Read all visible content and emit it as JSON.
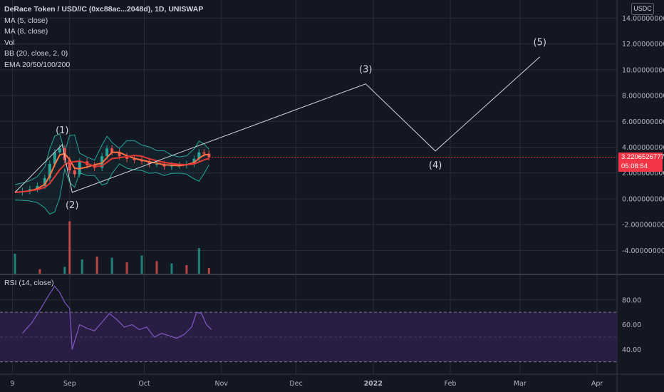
{
  "header": {
    "title": "DeRace Token / USD//C (0xc88ac...2048d), 1D, UNISWAP",
    "indicators": [
      "MA (5, close)",
      "MA (8, close)",
      "Vol",
      "BB (20, close, 2, 0)",
      "EMA 20/50/100/200"
    ]
  },
  "rsi_panel": {
    "label": "RSI (14, close)"
  },
  "price_scale": {
    "unit": "USDC"
  },
  "last_price": {
    "value": "3.2206526777",
    "countdown": "05:08:54"
  },
  "colors": {
    "background": "#131722",
    "grid": "#2a2e39",
    "up": "#26a69a",
    "down": "#ef5350",
    "ma": "#ff7043",
    "ema": "#e53935",
    "bollinger": "#26a69a",
    "rsi_line": "#7e57c2",
    "rsi_band": "#2a1d44",
    "last_price": "#f23645",
    "wave_line": "#d1d4dc"
  },
  "chart_data": [
    {
      "type": "line",
      "title": "DeRace Token / USD//C (0xc88ac...2048d), 1D, UNISWAP",
      "y_ticks": [
        "14.0000000000",
        "12.0000000000",
        "10.0000000000",
        "8.0000000000",
        "6.0000000000",
        "4.0000000000",
        "2.0000000000",
        "0.0000000000",
        "-2.0000000000",
        "-4.0000000000"
      ],
      "y_tick_values": [
        14,
        12,
        10,
        8,
        6,
        4,
        2,
        0,
        -2,
        -4
      ],
      "x_ticks": [
        "9",
        "Sep",
        "Oct",
        "Nov",
        "Dec",
        "2022",
        "Feb",
        "Mar",
        "Apr"
      ],
      "ylim": [
        -5.8,
        15.4
      ],
      "xlim": [
        "2021-08-04",
        "2022-04-09"
      ],
      "price_close": {
        "x": [
          "2021-08-10",
          "2021-08-13",
          "2021-08-16",
          "2021-08-19",
          "2021-08-22",
          "2021-08-24",
          "2021-08-26",
          "2021-08-28",
          "2021-08-30",
          "2021-09-01",
          "2021-09-03",
          "2021-09-05",
          "2021-09-08",
          "2021-09-11",
          "2021-09-14",
          "2021-09-16",
          "2021-09-18",
          "2021-09-21",
          "2021-09-24",
          "2021-09-27",
          "2021-09-30",
          "2021-10-03",
          "2021-10-06",
          "2021-10-09",
          "2021-10-12",
          "2021-10-15",
          "2021-10-18",
          "2021-10-21",
          "2021-10-23",
          "2021-10-25",
          "2021-10-27"
        ],
        "y": [
          0.5,
          0.6,
          0.75,
          1.0,
          1.6,
          2.7,
          3.6,
          3.9,
          3.0,
          2.2,
          1.9,
          2.9,
          2.6,
          2.4,
          3.3,
          3.9,
          3.6,
          3.3,
          3.1,
          3.0,
          2.9,
          2.7,
          2.7,
          2.5,
          2.6,
          2.6,
          2.7,
          3.1,
          3.6,
          3.5,
          3.22
        ]
      },
      "volume": {
        "x": [
          "2021-08-10",
          "2021-08-20",
          "2021-08-30",
          "2021-09-01",
          "2021-09-06",
          "2021-09-12",
          "2021-09-18",
          "2021-09-24",
          "2021-09-30",
          "2021-10-06",
          "2021-10-12",
          "2021-10-18",
          "2021-10-23",
          "2021-10-27"
        ],
        "heights_rel": [
          0.35,
          0.08,
          0.12,
          0.92,
          0.25,
          0.3,
          0.28,
          0.2,
          0.32,
          0.22,
          0.18,
          0.15,
          0.45,
          0.1
        ]
      },
      "elliott_wave": {
        "labels": [
          "(1)",
          "(2)",
          "(3)",
          "(4)",
          "(5)"
        ],
        "x": [
          "2021-08-29",
          "2021-09-02",
          "2021-12-29",
          "2022-01-26",
          "2022-03-09"
        ],
        "y": [
          4.2,
          0.5,
          8.9,
          3.7,
          11.0
        ],
        "start": {
          "x": "2021-08-10",
          "y": 0.5
        }
      }
    },
    {
      "type": "line",
      "title": "RSI (14, close)",
      "y_ticks": [
        "80.00",
        "60.00",
        "40.00"
      ],
      "y_tick_values": [
        80,
        60,
        40
      ],
      "band": [
        30,
        70
      ],
      "ylim": [
        20,
        100
      ],
      "x": [
        "2021-08-13",
        "2021-08-17",
        "2021-08-21",
        "2021-08-24",
        "2021-08-26",
        "2021-08-28",
        "2021-08-30",
        "2021-09-01",
        "2021-09-02",
        "2021-09-05",
        "2021-09-08",
        "2021-09-11",
        "2021-09-14",
        "2021-09-17",
        "2021-09-20",
        "2021-09-23",
        "2021-09-26",
        "2021-09-29",
        "2021-10-02",
        "2021-10-05",
        "2021-10-08",
        "2021-10-11",
        "2021-10-14",
        "2021-10-17",
        "2021-10-20",
        "2021-10-22",
        "2021-10-24",
        "2021-10-26",
        "2021-10-28"
      ],
      "values": [
        53,
        62,
        75,
        85,
        91,
        86,
        78,
        73,
        40,
        60,
        57,
        55,
        62,
        69,
        64,
        58,
        60,
        56,
        58,
        50,
        53,
        51,
        49,
        52,
        58,
        70,
        69,
        60,
        56
      ]
    }
  ]
}
